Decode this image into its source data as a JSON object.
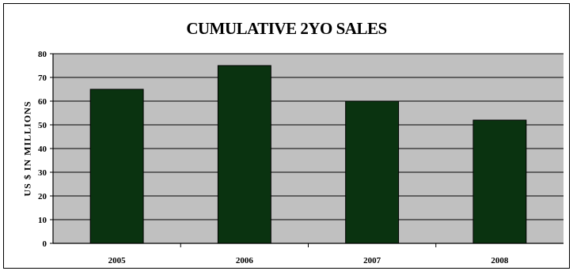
{
  "chart_data": {
    "type": "bar",
    "title": "CUMULATIVE 2YO SALES",
    "ylabel": "US $ IN MILLIONS",
    "xlabel": "",
    "categories": [
      "2005",
      "2006",
      "2007",
      "2008"
    ],
    "values": [
      65,
      75,
      60,
      52
    ],
    "ylim": [
      0,
      80
    ],
    "yticks": [
      0,
      10,
      20,
      30,
      40,
      50,
      60,
      70,
      80
    ],
    "grid": true,
    "legend": "none",
    "colors": {
      "bar": "#0a3310",
      "plot_background": "#c0c0c0",
      "gridline": "#000000"
    }
  }
}
